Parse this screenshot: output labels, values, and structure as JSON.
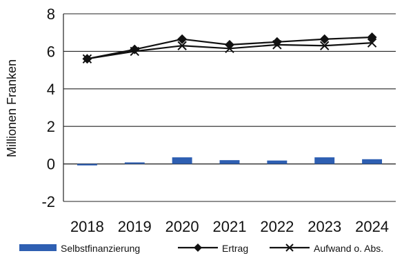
{
  "chart_data": {
    "type": "bar+line",
    "categories": [
      "2018",
      "2019",
      "2020",
      "2021",
      "2022",
      "2023",
      "2024"
    ],
    "ylabel": "Millionen Franken",
    "ylim": [
      -2,
      8
    ],
    "yticks": [
      -2,
      0,
      2,
      4,
      6,
      8
    ],
    "grid": true,
    "legend_position": "bottom",
    "series": [
      {
        "name": "Selbstfinanzierung",
        "kind": "bar",
        "color": "#2e5fb2",
        "values": [
          -0.08,
          0.08,
          0.35,
          0.2,
          0.18,
          0.35,
          0.25
        ]
      },
      {
        "name": "Ertrag",
        "kind": "line",
        "marker": "diamond",
        "color": "#111111",
        "values": [
          5.6,
          6.1,
          6.65,
          6.35,
          6.5,
          6.65,
          6.75
        ]
      },
      {
        "name": "Aufwand o. Abs.",
        "kind": "line",
        "marker": "x",
        "color": "#111111",
        "values": [
          5.6,
          6.0,
          6.3,
          6.15,
          6.35,
          6.3,
          6.45
        ]
      }
    ]
  }
}
